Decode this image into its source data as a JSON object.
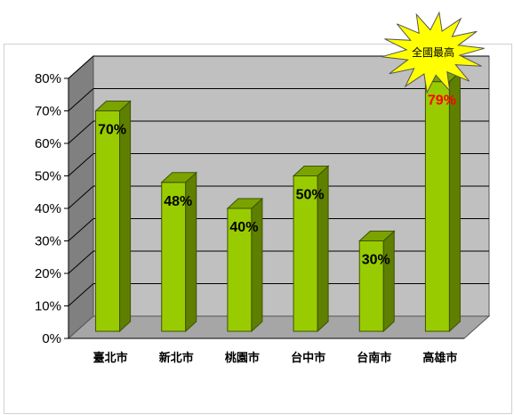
{
  "chart_data": {
    "type": "bar",
    "title": "",
    "xlabel": "",
    "ylabel": "",
    "categories": [
      "臺北市",
      "新北市",
      "桃園市",
      "台中市",
      "台南市",
      "高雄市"
    ],
    "values": [
      70,
      48,
      40,
      50,
      30,
      79
    ],
    "data_labels": [
      "70%",
      "48%",
      "40%",
      "50%",
      "30%",
      "79%"
    ],
    "ylim": [
      0,
      80
    ],
    "yticks": [
      0,
      10,
      20,
      30,
      40,
      50,
      60,
      70,
      80
    ],
    "ytick_labels": [
      "0%",
      "10%",
      "20%",
      "30%",
      "40%",
      "50%",
      "60%",
      "70%",
      "80%"
    ],
    "grid": true,
    "three_d": true,
    "highlight": {
      "category": "高雄市",
      "label_color": "#ff0000"
    },
    "annotation": {
      "text": "全國最高",
      "shape": "starburst",
      "fill": "#ffff00",
      "target": "高雄市"
    },
    "colors": {
      "bar_front": "#99cc00",
      "bar_side": "#5f7f00",
      "bar_top": "#7aa300",
      "back_wall": "#c0c0c0",
      "side_wall": "#808080",
      "floor": "#a6a6a6",
      "label_default": "#000000"
    }
  }
}
